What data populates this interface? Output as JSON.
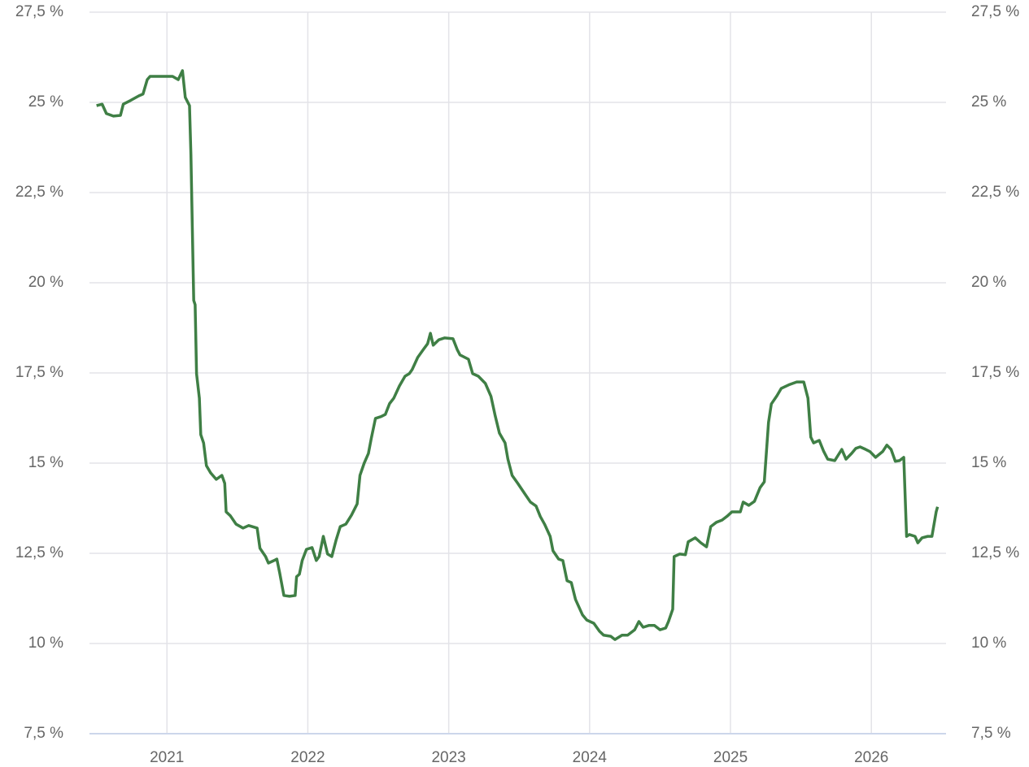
{
  "chart_data": {
    "type": "line",
    "x": [
      2020.5,
      2020.54,
      2020.57,
      2020.62,
      2020.67,
      2020.69,
      2020.74,
      2020.8,
      2020.83,
      2020.86,
      2020.88,
      2020.97,
      2021.04,
      2021.08,
      2021.11,
      2021.13,
      2021.16,
      2021.17,
      2021.18,
      2021.19,
      2021.2,
      2021.21,
      2021.23,
      2021.24,
      2021.26,
      2021.28,
      2021.31,
      2021.35,
      2021.39,
      2021.41,
      2021.42,
      2021.45,
      2021.49,
      2021.54,
      2021.58,
      2021.64,
      2021.66,
      2021.7,
      2021.72,
      2021.76,
      2021.78,
      2021.8,
      2021.83,
      2021.87,
      2021.91,
      2021.92,
      2021.94,
      2021.96,
      2021.99,
      2022.03,
      2022.06,
      2022.08,
      2022.11,
      2022.14,
      2022.17,
      2022.2,
      2022.23,
      2022.27,
      2022.31,
      2022.35,
      2022.37,
      2022.4,
      2022.43,
      2022.45,
      2022.48,
      2022.52,
      2022.55,
      2022.58,
      2022.61,
      2022.65,
      2022.69,
      2022.72,
      2022.74,
      2022.78,
      2022.82,
      2022.85,
      2022.87,
      2022.89,
      2022.93,
      2022.97,
      2023.03,
      2023.06,
      2023.08,
      2023.14,
      2023.17,
      2023.21,
      2023.26,
      2023.3,
      2023.33,
      2023.36,
      2023.4,
      2023.42,
      2023.45,
      2023.49,
      2023.54,
      2023.58,
      2023.62,
      2023.65,
      2023.68,
      2023.72,
      2023.74,
      2023.78,
      2023.81,
      2023.84,
      2023.87,
      2023.9,
      2023.95,
      2023.98,
      2024.03,
      2024.07,
      2024.1,
      2024.15,
      2024.18,
      2024.23,
      2024.27,
      2024.32,
      2024.35,
      2024.38,
      2024.42,
      2024.46,
      2024.5,
      2024.54,
      2024.56,
      2024.59,
      2024.6,
      2024.64,
      2024.68,
      2024.7,
      2024.75,
      2024.79,
      2024.83,
      2024.86,
      2024.9,
      2024.94,
      2024.98,
      2025.01,
      2025.07,
      2025.09,
      2025.13,
      2025.17,
      2025.21,
      2025.24,
      2025.27,
      2025.29,
      2025.33,
      2025.36,
      2025.42,
      2025.47,
      2025.52,
      2025.55,
      2025.57,
      2025.59,
      2025.63,
      2025.66,
      2025.69,
      2025.74,
      2025.79,
      2025.82,
      2025.86,
      2025.89,
      2025.92,
      2025.96,
      2025.99,
      2026.03,
      2026.08,
      2026.11,
      2026.14,
      2026.17,
      2026.2,
      2026.23,
      2026.25,
      2026.27,
      2026.31,
      2026.33,
      2026.36,
      2026.4,
      2026.43,
      2026.46,
      2026.47
    ],
    "series": [
      {
        "color": "#3f7f45",
        "values": [
          24.91,
          24.95,
          24.69,
          24.62,
          24.64,
          24.95,
          25.05,
          25.18,
          25.23,
          25.63,
          25.72,
          25.72,
          25.72,
          25.63,
          25.88,
          25.14,
          24.91,
          23.56,
          21.53,
          19.51,
          19.39,
          17.48,
          16.8,
          15.79,
          15.56,
          14.93,
          14.73,
          14.55,
          14.66,
          14.44,
          13.65,
          13.54,
          13.31,
          13.2,
          13.27,
          13.2,
          12.64,
          12.41,
          12.23,
          12.3,
          12.34,
          11.96,
          11.33,
          11.31,
          11.33,
          11.85,
          11.92,
          12.3,
          12.61,
          12.66,
          12.3,
          12.41,
          12.97,
          12.48,
          12.41,
          12.86,
          13.24,
          13.31,
          13.56,
          13.87,
          14.66,
          15.0,
          15.27,
          15.68,
          16.24,
          16.29,
          16.35,
          16.65,
          16.8,
          17.14,
          17.41,
          17.48,
          17.59,
          17.93,
          18.15,
          18.31,
          18.6,
          18.27,
          18.42,
          18.47,
          18.45,
          18.15,
          18.0,
          17.88,
          17.48,
          17.41,
          17.21,
          16.85,
          16.31,
          15.83,
          15.56,
          15.11,
          14.66,
          14.44,
          14.15,
          13.92,
          13.81,
          13.52,
          13.31,
          12.97,
          12.57,
          12.34,
          12.3,
          11.74,
          11.69,
          11.22,
          10.79,
          10.65,
          10.56,
          10.34,
          10.23,
          10.2,
          10.11,
          10.23,
          10.23,
          10.38,
          10.61,
          10.45,
          10.5,
          10.5,
          10.38,
          10.43,
          10.61,
          10.95,
          12.41,
          12.48,
          12.46,
          12.82,
          12.93,
          12.79,
          12.68,
          13.24,
          13.36,
          13.42,
          13.54,
          13.65,
          13.65,
          13.92,
          13.83,
          13.94,
          14.32,
          14.48,
          16.13,
          16.64,
          16.87,
          17.07,
          17.18,
          17.25,
          17.25,
          16.8,
          15.72,
          15.56,
          15.63,
          15.34,
          15.11,
          15.07,
          15.38,
          15.11,
          15.27,
          15.41,
          15.45,
          15.38,
          15.32,
          15.16,
          15.32,
          15.5,
          15.38,
          15.05,
          15.07,
          15.16,
          12.97,
          13.02,
          12.97,
          12.79,
          12.93,
          12.97,
          12.97,
          13.65,
          13.79
        ]
      }
    ],
    "xlim": [
      2020.45,
      2026.53
    ],
    "xticks": [
      2021,
      2022,
      2023,
      2024,
      2025,
      2026
    ],
    "ylim": [
      7.5,
      27.5
    ],
    "yticks": [
      {
        "value": 7.5,
        "label": "7,5 %"
      },
      {
        "value": 10,
        "label": "10 %"
      },
      {
        "value": 12.5,
        "label": "12,5 %"
      },
      {
        "value": 15,
        "label": "15 %"
      },
      {
        "value": 17.5,
        "label": "17,5 %"
      },
      {
        "value": 20,
        "label": "20 %"
      },
      {
        "value": 22.5,
        "label": "22,5 %"
      },
      {
        "value": 25,
        "label": "25 %"
      },
      {
        "value": 27.5,
        "label": "27,5 %"
      }
    ],
    "y2lim": [
      7.5,
      27.5
    ],
    "y2ticks": [
      {
        "value": 7.5,
        "label": "7,5 %"
      },
      {
        "value": 10,
        "label": "10 %"
      },
      {
        "value": 12.5,
        "label": "12,5 %"
      },
      {
        "value": 15,
        "label": "15 %"
      },
      {
        "value": 17.5,
        "label": "17,5 %"
      },
      {
        "value": 20,
        "label": "20 %"
      },
      {
        "value": 22.5,
        "label": "22,5 %"
      },
      {
        "value": 25,
        "label": "25 %"
      },
      {
        "value": 27.5,
        "label": "27,5 %"
      }
    ],
    "grid": true
  }
}
